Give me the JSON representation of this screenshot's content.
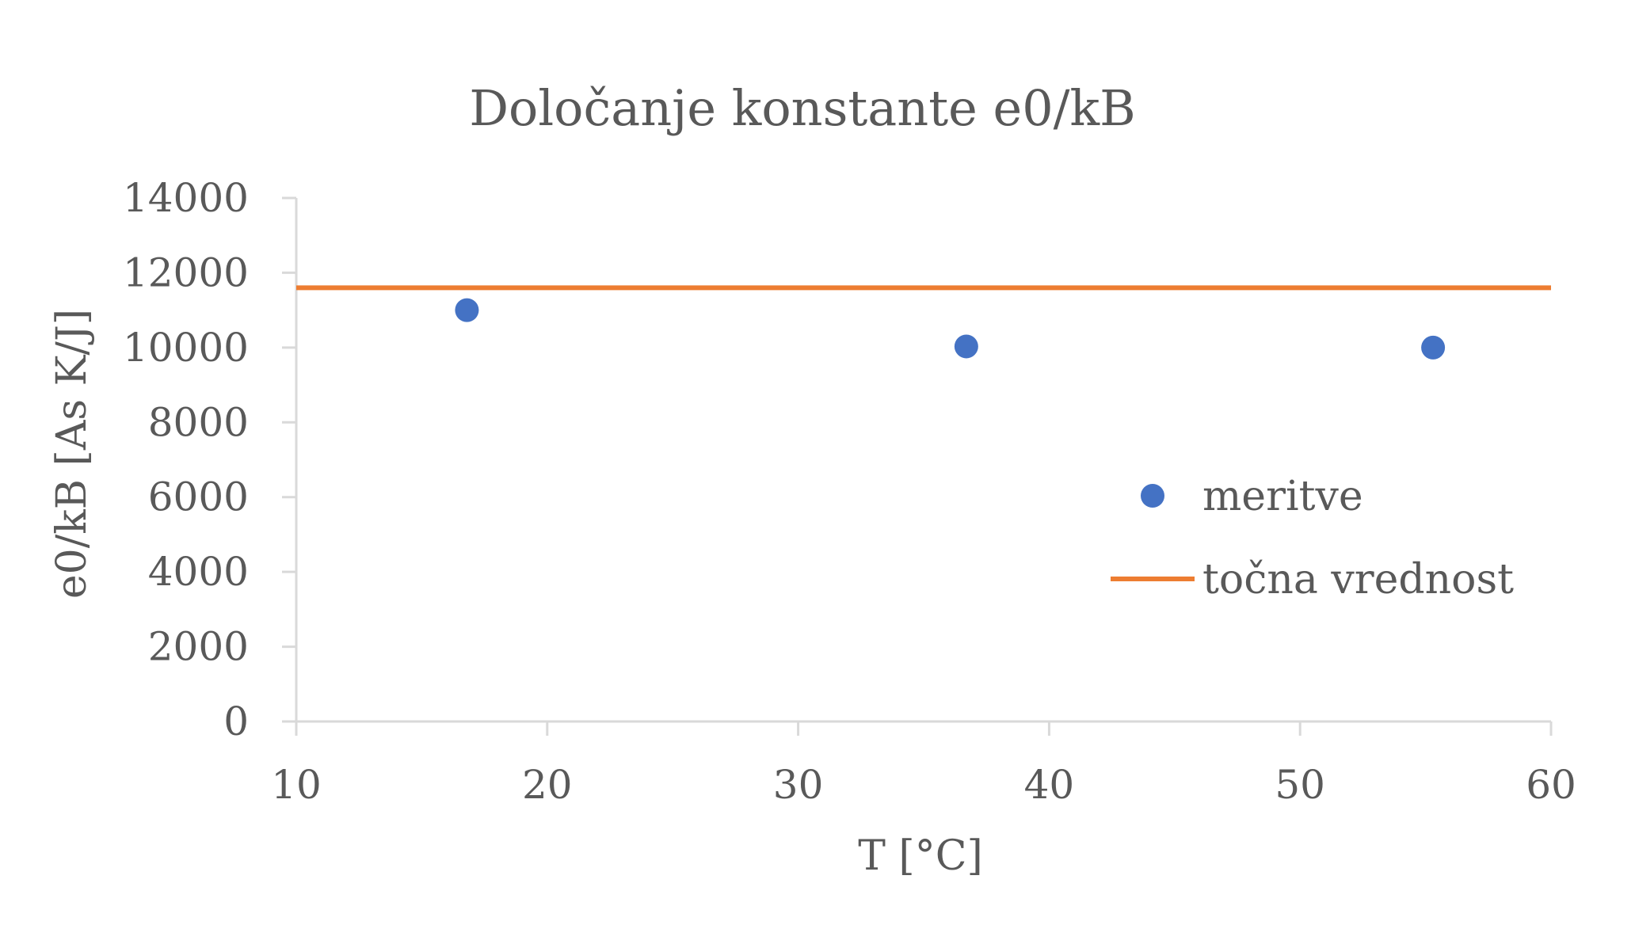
{
  "chart_data": {
    "type": "scatter",
    "title": "Določanje konstante e0/kB",
    "xlabel": "T [°C]",
    "ylabel": "e0/kB [As K/J]",
    "xlim": [
      10,
      60
    ],
    "ylim": [
      0,
      14000
    ],
    "xticks": [
      10,
      20,
      30,
      40,
      50,
      60
    ],
    "yticks": [
      0,
      2000,
      4000,
      6000,
      8000,
      10000,
      12000,
      14000
    ],
    "xtick_labels": [
      "10",
      "20",
      "30",
      "40",
      "50",
      "60"
    ],
    "ytick_labels": [
      "0",
      "2000",
      "4000",
      "6000",
      "8000",
      "10000",
      "12000",
      "14000"
    ],
    "grid": false,
    "legend_position": "right",
    "series": [
      {
        "name": "meritve",
        "kind": "scatter",
        "color": "#4472C4",
        "points": [
          {
            "x": 16.8,
            "y": 11000
          },
          {
            "x": 36.7,
            "y": 10030
          },
          {
            "x": 55.3,
            "y": 10000
          }
        ]
      },
      {
        "name": "točna vrednost",
        "kind": "line",
        "color": "#ED7D31",
        "points": [
          {
            "x": 10,
            "y": 11600
          },
          {
            "x": 60,
            "y": 11600
          }
        ]
      }
    ]
  }
}
